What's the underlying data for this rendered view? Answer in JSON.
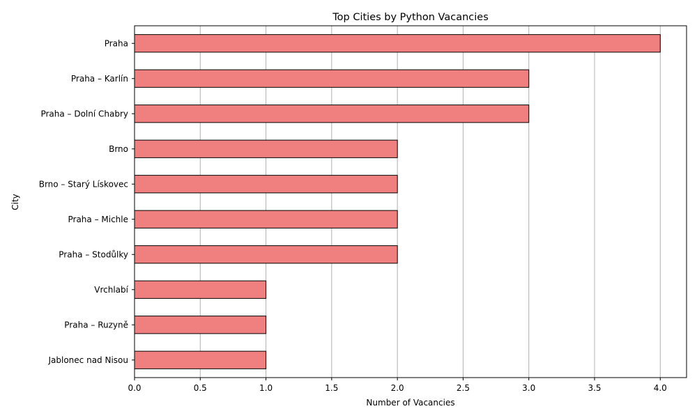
{
  "chart_data": {
    "type": "bar",
    "orientation": "horizontal",
    "title": "Top Cities by Python Vacancies",
    "xlabel": "Number of Vacancies",
    "ylabel": "City",
    "categories": [
      "Praha",
      "Praha – Karlín",
      "Praha – Dolní Chabry",
      "Brno",
      "Brno – Starý Lískovec",
      "Praha – Michle",
      "Praha – Stodůlky",
      "Vrchlabí",
      "Praha – Ruzyně",
      "Jablonec nad Nisou"
    ],
    "values": [
      4,
      3,
      3,
      2,
      2,
      2,
      2,
      1,
      1,
      1
    ],
    "xlim": [
      0,
      4.2
    ],
    "xticks": [
      "0.0",
      "0.5",
      "1.0",
      "1.5",
      "2.0",
      "2.5",
      "3.0",
      "3.5",
      "4.0"
    ],
    "grid": "x-axis vertical lines",
    "bar_color": "#f08080",
    "bar_edge_color": "#000000",
    "grid_color": "#b0b0b0"
  }
}
